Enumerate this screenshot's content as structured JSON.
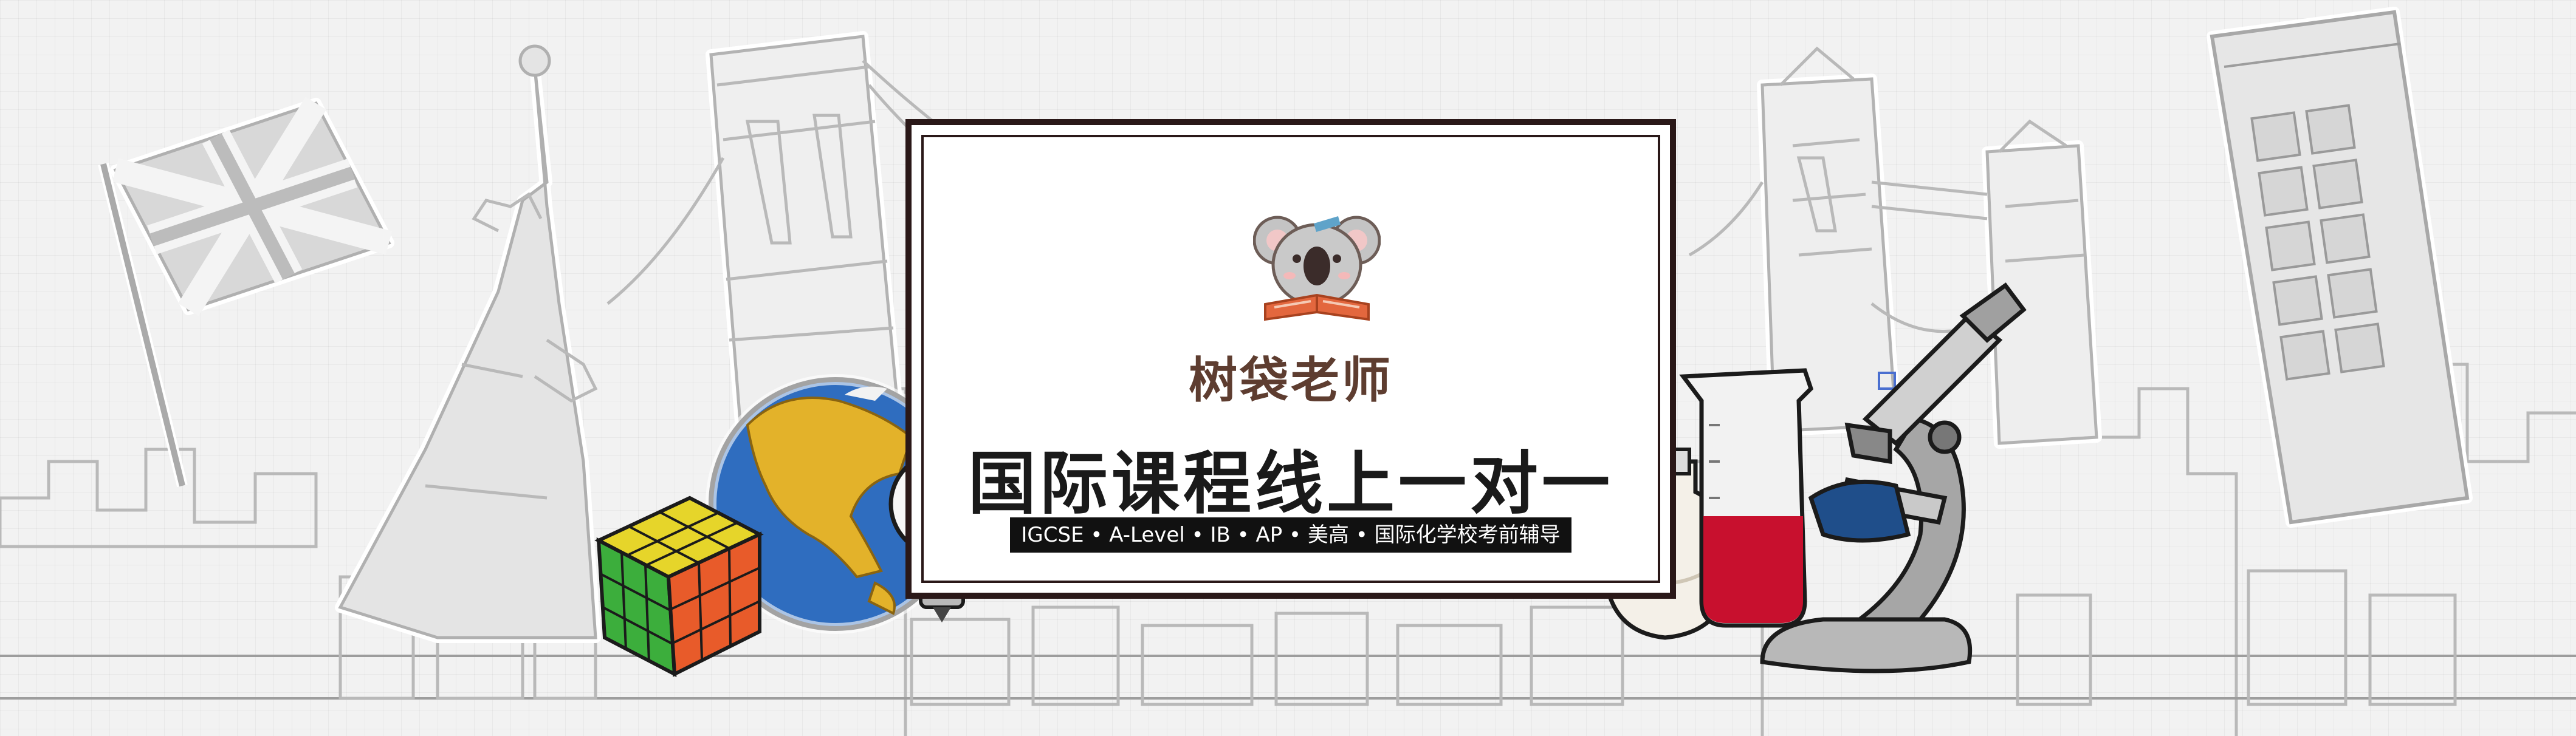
{
  "brand": {
    "name": "树袋老师",
    "mascot_icon": "koala-reading-book-icon"
  },
  "headline": "国际课程线上一对一",
  "subline": "IGCSE • A-Level • IB • AP • 美高 • 国际化学校考前辅导",
  "background_icons": [
    "union-jack-flag-icon",
    "statue-of-liberty-icon",
    "brooklyn-bridge-icon",
    "tower-bridge-icon",
    "telephone-booth-icon",
    "city-skyline-icon"
  ],
  "foreground_icons": [
    "rubiks-cube-icon",
    "globe-icon",
    "light-bulb-icon",
    "alcohol-lamp-icon",
    "beaker-icon",
    "microscope-icon"
  ],
  "colors": {
    "frame": "#2a1818",
    "brand_text": "#5e3d30",
    "headline_text": "#1a1a1a",
    "subline_bg": "#111111",
    "subline_text": "#ffffff"
  }
}
